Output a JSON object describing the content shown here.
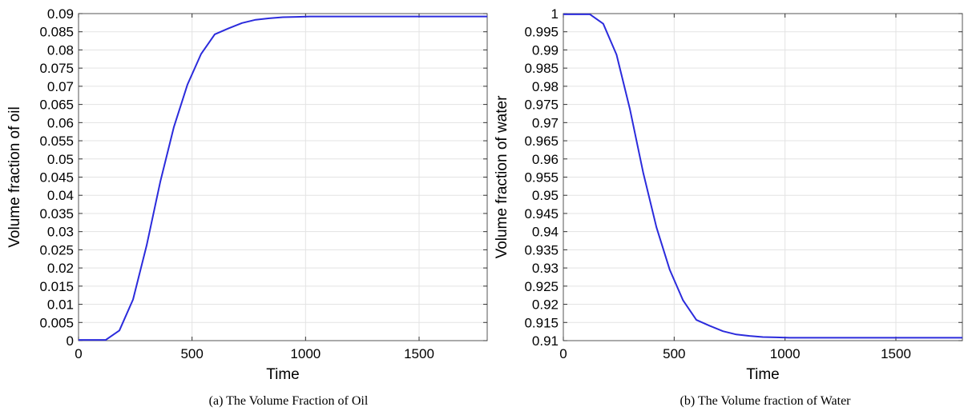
{
  "chart_data": [
    {
      "type": "line",
      "caption": "(a) The Volume Fraction of Oil",
      "xlabel": "Time",
      "ylabel": "Volume fraction of oil",
      "xlim": [
        0,
        1800
      ],
      "ylim": [
        0,
        0.09
      ],
      "xticks": [
        0,
        500,
        1000,
        1500
      ],
      "yticks": [
        0,
        0.005,
        0.01,
        0.015,
        0.02,
        0.025,
        0.03,
        0.035,
        0.04,
        0.045,
        0.05,
        0.055,
        0.06,
        0.065,
        0.07,
        0.075,
        0.08,
        0.085,
        0.09
      ],
      "grid": true,
      "series_color": "#2b2bdc",
      "x": [
        0,
        60,
        120,
        180,
        240,
        300,
        360,
        420,
        480,
        540,
        600,
        660,
        720,
        780,
        840,
        900,
        960,
        1020,
        1080,
        1200,
        1400,
        1600,
        1800
      ],
      "y": [
        0.0002,
        0.0002,
        0.0002,
        0.0028,
        0.0113,
        0.0262,
        0.0437,
        0.0588,
        0.0705,
        0.0789,
        0.0843,
        0.0859,
        0.0874,
        0.0883,
        0.0887,
        0.089,
        0.0891,
        0.0892,
        0.0892,
        0.0892,
        0.0892,
        0.0892,
        0.0892
      ]
    },
    {
      "type": "line",
      "caption": "(b) The Volume fraction of Water",
      "xlabel": "Time",
      "ylabel": "Volume fraction of water",
      "xlim": [
        0,
        1800
      ],
      "ylim": [
        0.91,
        1.0
      ],
      "xticks": [
        0,
        500,
        1000,
        1500
      ],
      "yticks": [
        0.91,
        0.915,
        0.92,
        0.925,
        0.93,
        0.935,
        0.94,
        0.945,
        0.95,
        0.955,
        0.96,
        0.965,
        0.97,
        0.975,
        0.98,
        0.985,
        0.99,
        0.995,
        1
      ],
      "grid": true,
      "series_color": "#2b2bdc",
      "x": [
        0,
        60,
        120,
        180,
        240,
        300,
        360,
        420,
        480,
        540,
        600,
        660,
        720,
        780,
        840,
        900,
        960,
        1020,
        1080,
        1200,
        1400,
        1600,
        1800
      ],
      "y": [
        0.9998,
        0.9998,
        0.9998,
        0.9972,
        0.9887,
        0.9738,
        0.9563,
        0.9412,
        0.9295,
        0.9211,
        0.9157,
        0.9141,
        0.9126,
        0.9117,
        0.9113,
        0.911,
        0.9109,
        0.9108,
        0.9108,
        0.9108,
        0.9108,
        0.9108,
        0.9108
      ]
    }
  ]
}
